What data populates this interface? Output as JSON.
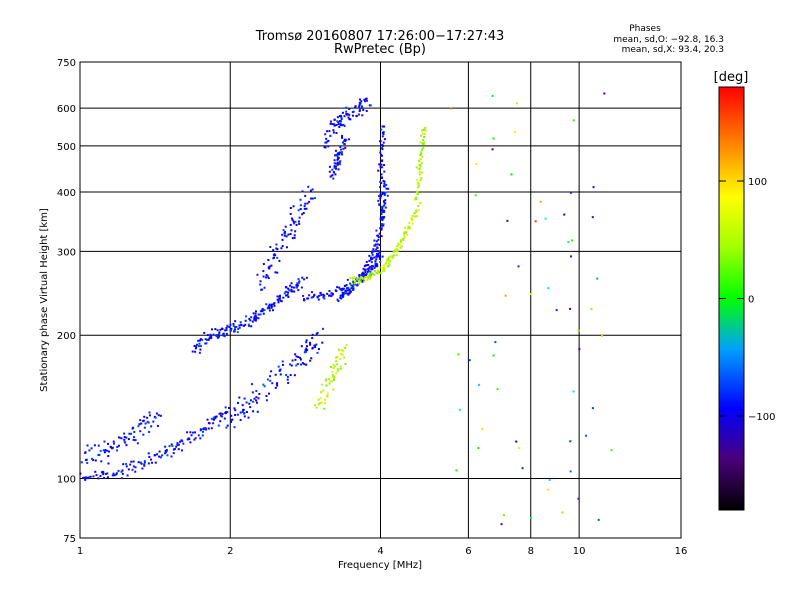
{
  "chart_data": {
    "type": "scatter",
    "title": "Tromsø 20160807 17:26:00−17:27:43",
    "subtitle": "RwPretec (Bp)",
    "xlabel": "Frequency [MHz]",
    "ylabel": "Stationary phase Virtual Height [km]",
    "x_scale": "log",
    "y_scale": "log",
    "xlim": [
      1,
      16
    ],
    "ylim": [
      75,
      750
    ],
    "x_ticks": [
      1,
      2,
      4,
      6,
      8,
      10,
      16
    ],
    "x_tick_labels": [
      "1",
      "2",
      "4",
      "6",
      "8",
      "10",
      "16"
    ],
    "y_ticks": [
      75,
      100,
      200,
      300,
      400,
      500,
      600,
      750
    ],
    "y_tick_labels": [
      "75",
      "100",
      "200",
      "300",
      "400",
      "500",
      "600",
      "750"
    ],
    "grid": true,
    "phase_stats": {
      "title": "Phases",
      "line_o": "mean, sd,O: −92.8, 16.3",
      "line_x": "mean, sd,X:  93.4, 20.3"
    },
    "colorbar": {
      "label": "[deg]",
      "range": [
        -180,
        180
      ],
      "ticks": [
        -100,
        0,
        100
      ],
      "tick_labels": [
        "−100",
        "0",
        "100"
      ]
    },
    "series": [
      {
        "mode": "O",
        "phase_mean": -92.8,
        "traces": [
          {
            "f": [
              1.0,
              1.2,
              1.4,
              1.6,
              1.8,
              2.0
            ],
            "h": [
              100,
              103,
              110,
              118,
              128,
              140
            ],
            "spread": 0.03
          },
          {
            "f": [
              1.0,
              1.15,
              1.3,
              1.45
            ],
            "h": [
              110,
              115,
              125,
              135
            ],
            "spread": 0.05
          },
          {
            "f": [
              1.7,
              1.85,
              2.0,
              2.2,
              2.4,
              2.6,
              2.8
            ],
            "h": [
              185,
              200,
              205,
              215,
              230,
              245,
              260
            ],
            "spread": 0.03
          },
          {
            "f": [
              2.0,
              2.2,
              2.5,
              2.8,
              3.0
            ],
            "h": [
              130,
              145,
              165,
              185,
              200
            ],
            "spread": 0.06
          },
          {
            "f": [
              2.3,
              2.5,
              2.7,
              2.9
            ],
            "h": [
              250,
              300,
              350,
              400
            ],
            "spread": 0.05
          },
          {
            "f": [
              2.8,
              3.2,
              3.6,
              3.9,
              4.0
            ],
            "h": [
              240,
              245,
              260,
              280,
              300
            ],
            "spread": 0.02
          },
          {
            "f": [
              3.3,
              3.5,
              3.7,
              3.9,
              4.05,
              4.1
            ],
            "h": [
              240,
              250,
              270,
              300,
              350,
              420
            ],
            "spread": 0.02
          },
          {
            "f": [
              4.0,
              4.02,
              4.05
            ],
            "h": [
              350,
              450,
              550
            ],
            "spread": 0.02
          },
          {
            "f": [
              3.1,
              3.3,
              3.5,
              3.8
            ],
            "h": [
              500,
              560,
              590,
              620
            ],
            "spread": 0.04
          },
          {
            "f": [
              3.2,
              3.3,
              3.4
            ],
            "h": [
              430,
              470,
              520
            ],
            "spread": 0.03
          }
        ]
      },
      {
        "mode": "X",
        "phase_mean": 93.4,
        "traces": [
          {
            "f": [
              3.5,
              3.8,
              4.1,
              4.4,
              4.7
            ],
            "h": [
              260,
              265,
              280,
              310,
              360
            ],
            "spread": 0.02
          },
          {
            "f": [
              4.7,
              4.8,
              4.9
            ],
            "h": [
              360,
              450,
              550
            ],
            "spread": 0.02
          },
          {
            "f": [
              3.0,
              3.2,
              3.4
            ],
            "h": [
              140,
              165,
              190
            ],
            "spread": 0.04
          }
        ]
      }
    ]
  }
}
